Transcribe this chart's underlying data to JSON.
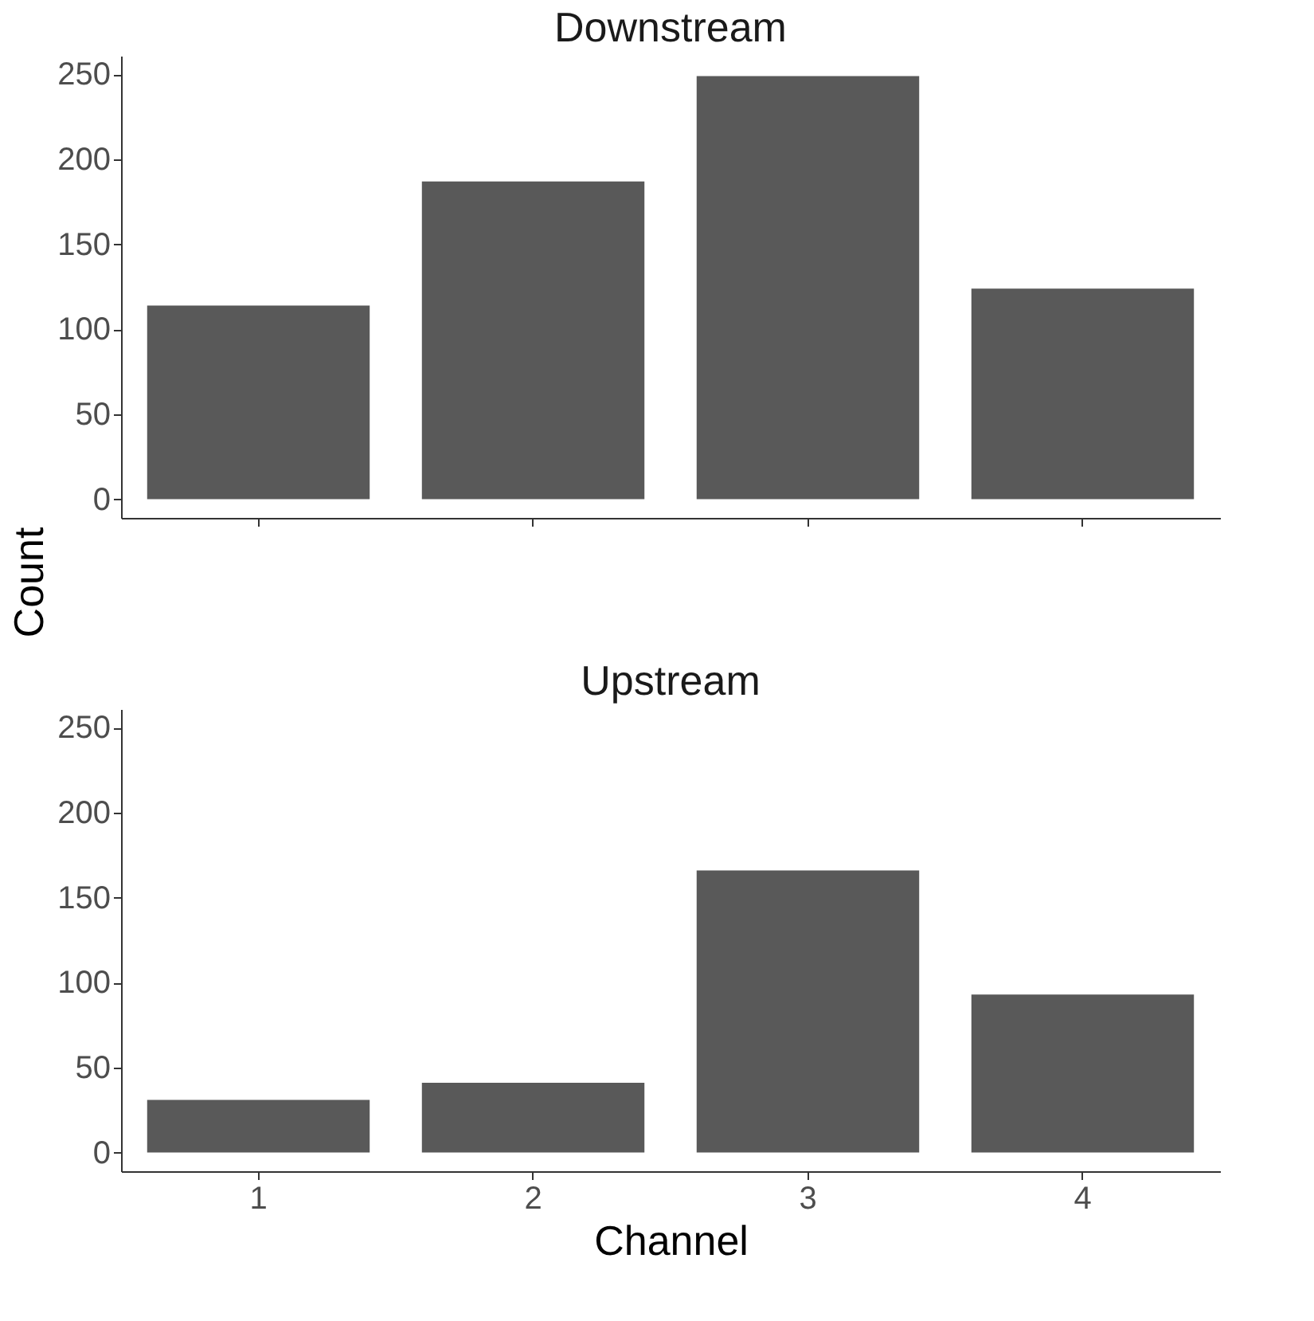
{
  "chart_data": [
    {
      "type": "bar",
      "title": "Downstream",
      "ylabel": "Count",
      "categories": [
        "1",
        "2",
        "3",
        "4"
      ],
      "values": [
        114,
        187,
        249,
        124
      ],
      "color": "#595959",
      "ylim": [
        -11,
        261
      ],
      "yticks": [
        0,
        50,
        100,
        150,
        200,
        250
      ],
      "grid": false,
      "tick_labels": "y"
    },
    {
      "type": "bar",
      "title": "Upstream",
      "xlabel": "Channel",
      "categories": [
        "1",
        "2",
        "3",
        "4"
      ],
      "values": [
        31,
        41,
        166,
        93
      ],
      "color": "#595959",
      "ylim": [
        -11,
        261
      ],
      "yticks": [
        0,
        50,
        100,
        150,
        200,
        250
      ],
      "grid": false
    }
  ]
}
